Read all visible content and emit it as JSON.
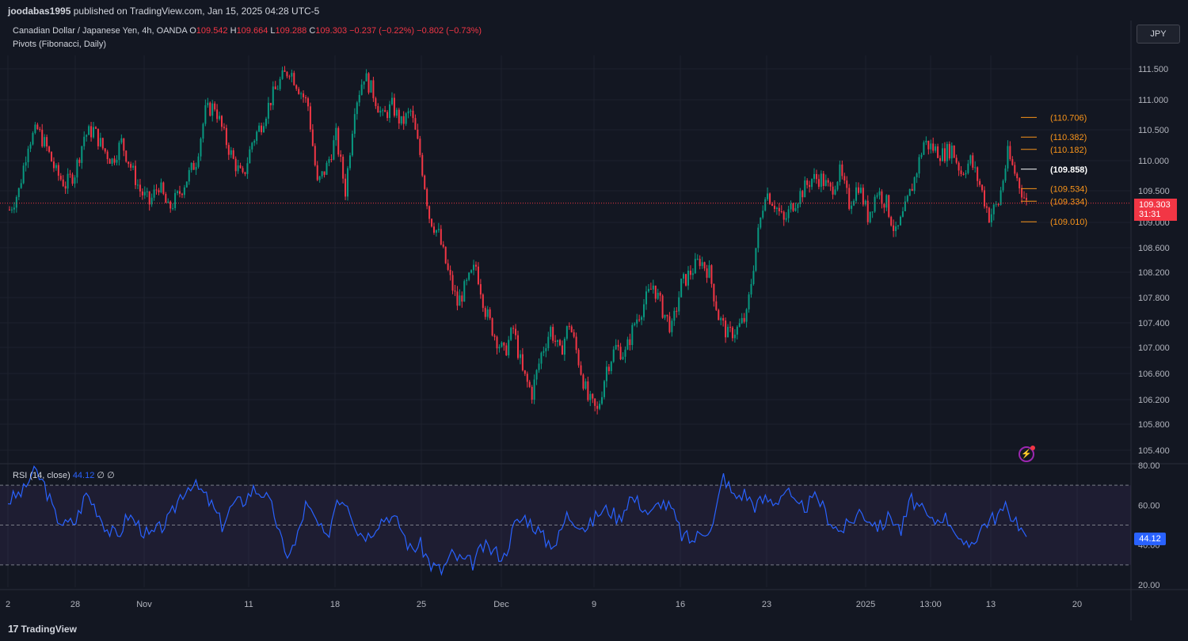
{
  "header": {
    "publisher": "joodabas1995",
    "published_text": "published on TradingView.com, Jan 15, 2025 04:28 UTC-5"
  },
  "legend": {
    "symbol": "Canadian Dollar / Japanese Yen, 4h, OANDA",
    "open_label": "O",
    "open": "109.542",
    "high_label": "H",
    "high": "109.664",
    "low_label": "L",
    "low": "109.288",
    "close_label": "C",
    "close": "109.303",
    "change": "−0.237 (−0.22%)",
    "change2": "−0.802 (−0.73%)",
    "indicator": "Pivots (Fibonacci, Daily)"
  },
  "rsi_legend": {
    "name": "RSI (14, close)",
    "value": "44.12",
    "extra1": "∅",
    "extra2": "∅"
  },
  "currency_button": "JPY",
  "price_tag": {
    "price": "109.303",
    "countdown": "31:31"
  },
  "rsi_tag": "44.12",
  "footer": {
    "brand": "TradingView",
    "brand_mark": "17"
  },
  "colors": {
    "up": "#089981",
    "down": "#f23645",
    "pivot": "#f7931a",
    "pivot_p": "#ffffff",
    "rsi": "#2962ff",
    "rsi_band": "#7e57c2",
    "bg": "#131722"
  },
  "icons": {
    "flash": "flash-icon"
  },
  "chart_data": {
    "type": "candlestick",
    "y_ticks": [
      "111.500",
      "111.000",
      "110.500",
      "110.000",
      "109.500",
      "109.000",
      "108.600",
      "108.200",
      "107.800",
      "107.400",
      "107.000",
      "106.600",
      "106.200",
      "105.800",
      "105.400"
    ],
    "x_ticks": [
      "2",
      "28",
      "Nov",
      "11",
      "18",
      "25",
      "Dec",
      "9",
      "16",
      "23",
      "2025",
      "13:00",
      "13",
      "20"
    ],
    "pivots": [
      {
        "label": "(110.706)",
        "value": 110.706,
        "kind": "R3"
      },
      {
        "label": "(110.382)",
        "value": 110.382,
        "kind": "R2"
      },
      {
        "label": "(110.182)",
        "value": 110.182,
        "kind": "R1"
      },
      {
        "label": "(109.858)",
        "value": 109.858,
        "kind": "P"
      },
      {
        "label": "(109.534)",
        "value": 109.534,
        "kind": "S1"
      },
      {
        "label": "(109.334)",
        "value": 109.334,
        "kind": "S2"
      },
      {
        "label": "(109.010)",
        "value": 109.01,
        "kind": "S3"
      }
    ],
    "last_price": 109.303,
    "close_path": [
      [
        0,
        109.2
      ],
      [
        2,
        109.5
      ],
      [
        4,
        110.3
      ],
      [
        6,
        110.5
      ],
      [
        8,
        110.2
      ],
      [
        10,
        109.8
      ],
      [
        12,
        109.6
      ],
      [
        14,
        109.8
      ],
      [
        16,
        110.4
      ],
      [
        18,
        110.5
      ],
      [
        20,
        110.2
      ],
      [
        22,
        110.0
      ],
      [
        24,
        110.3
      ],
      [
        26,
        109.9
      ],
      [
        28,
        109.5
      ],
      [
        30,
        109.3
      ],
      [
        32,
        109.6
      ],
      [
        34,
        109.2
      ],
      [
        36,
        109.4
      ],
      [
        38,
        109.7
      ],
      [
        40,
        110.0
      ],
      [
        42,
        110.8
      ],
      [
        44,
        110.9
      ],
      [
        46,
        110.4
      ],
      [
        48,
        110.0
      ],
      [
        50,
        109.7
      ],
      [
        52,
        110.3
      ],
      [
        54,
        110.6
      ],
      [
        56,
        111.0
      ],
      [
        58,
        111.3
      ],
      [
        60,
        111.5
      ],
      [
        62,
        111.2
      ],
      [
        64,
        110.9
      ],
      [
        66,
        109.6
      ],
      [
        68,
        109.9
      ],
      [
        70,
        110.4
      ],
      [
        72,
        109.5
      ],
      [
        74,
        110.9
      ],
      [
        76,
        111.4
      ],
      [
        78,
        111.1
      ],
      [
        80,
        110.7
      ],
      [
        82,
        110.9
      ],
      [
        84,
        110.6
      ],
      [
        86,
        110.8
      ],
      [
        88,
        110.1
      ],
      [
        90,
        109.1
      ],
      [
        92,
        108.8
      ],
      [
        94,
        108.2
      ],
      [
        96,
        107.7
      ],
      [
        98,
        108.0
      ],
      [
        100,
        108.3
      ],
      [
        102,
        107.6
      ],
      [
        104,
        107.2
      ],
      [
        106,
        106.9
      ],
      [
        108,
        107.3
      ],
      [
        110,
        106.6
      ],
      [
        112,
        106.3
      ],
      [
        114,
        106.9
      ],
      [
        116,
        107.3
      ],
      [
        118,
        106.9
      ],
      [
        120,
        107.4
      ],
      [
        122,
        106.8
      ],
      [
        124,
        106.2
      ],
      [
        126,
        106.0
      ],
      [
        128,
        106.7
      ],
      [
        130,
        107.0
      ],
      [
        132,
        106.9
      ],
      [
        134,
        107.4
      ],
      [
        136,
        107.7
      ],
      [
        138,
        108.0
      ],
      [
        140,
        107.6
      ],
      [
        142,
        107.3
      ],
      [
        144,
        108.0
      ],
      [
        146,
        108.2
      ],
      [
        148,
        108.4
      ],
      [
        150,
        108.2
      ],
      [
        152,
        107.5
      ],
      [
        154,
        107.2
      ],
      [
        156,
        107.3
      ],
      [
        158,
        107.5
      ],
      [
        160,
        108.6
      ],
      [
        162,
        109.5
      ],
      [
        164,
        109.3
      ],
      [
        166,
        109.0
      ],
      [
        168,
        109.3
      ],
      [
        170,
        109.5
      ],
      [
        172,
        109.7
      ],
      [
        174,
        109.7
      ],
      [
        176,
        109.5
      ],
      [
        178,
        109.8
      ],
      [
        180,
        109.3
      ],
      [
        182,
        109.6
      ],
      [
        184,
        109.1
      ],
      [
        186,
        109.5
      ],
      [
        188,
        109.3
      ],
      [
        190,
        108.8
      ],
      [
        192,
        109.2
      ],
      [
        194,
        109.7
      ],
      [
        196,
        110.3
      ],
      [
        198,
        110.2
      ],
      [
        200,
        110.1
      ],
      [
        202,
        110.2
      ],
      [
        204,
        109.8
      ],
      [
        206,
        110.0
      ],
      [
        208,
        109.6
      ],
      [
        210,
        109.1
      ],
      [
        212,
        109.3
      ],
      [
        214,
        110.1
      ],
      [
        216,
        109.7
      ],
      [
        218,
        109.3
      ]
    ],
    "rsi": {
      "y_ticks": [
        "80.00",
        "60.00",
        "40.00",
        "20.00"
      ],
      "levels": [
        70,
        50,
        30
      ],
      "path": [
        [
          0,
          62
        ],
        [
          3,
          67
        ],
        [
          5,
          78
        ],
        [
          7,
          70
        ],
        [
          9,
          55
        ],
        [
          11,
          50
        ],
        [
          13,
          52
        ],
        [
          15,
          66
        ],
        [
          17,
          58
        ],
        [
          19,
          48
        ],
        [
          21,
          44
        ],
        [
          23,
          55
        ],
        [
          25,
          50
        ],
        [
          27,
          44
        ],
        [
          29,
          48
        ],
        [
          31,
          53
        ],
        [
          33,
          65
        ],
        [
          35,
          71
        ],
        [
          37,
          67
        ],
        [
          39,
          60
        ],
        [
          41,
          50
        ],
        [
          43,
          60
        ],
        [
          45,
          62
        ],
        [
          47,
          68
        ],
        [
          49,
          66
        ],
        [
          51,
          56
        ],
        [
          53,
          35
        ],
        [
          55,
          40
        ],
        [
          57,
          60
        ],
        [
          59,
          52
        ],
        [
          61,
          42
        ],
        [
          63,
          64
        ],
        [
          65,
          62
        ],
        [
          67,
          47
        ],
        [
          69,
          45
        ],
        [
          71,
          52
        ],
        [
          73,
          55
        ],
        [
          75,
          50
        ],
        [
          77,
          38
        ],
        [
          79,
          40
        ],
        [
          81,
          30
        ],
        [
          83,
          27
        ],
        [
          85,
          35
        ],
        [
          87,
          32
        ],
        [
          89,
          31
        ],
        [
          91,
          39
        ],
        [
          93,
          37
        ],
        [
          95,
          34
        ],
        [
          97,
          50
        ],
        [
          99,
          54
        ],
        [
          101,
          49
        ],
        [
          103,
          42
        ],
        [
          105,
          41
        ],
        [
          107,
          55
        ],
        [
          109,
          52
        ],
        [
          111,
          48
        ],
        [
          113,
          56
        ],
        [
          115,
          58
        ],
        [
          117,
          53
        ],
        [
          119,
          64
        ],
        [
          121,
          61
        ],
        [
          123,
          55
        ],
        [
          125,
          62
        ],
        [
          127,
          58
        ],
        [
          129,
          45
        ],
        [
          131,
          42
        ],
        [
          133,
          47
        ],
        [
          135,
          50
        ],
        [
          137,
          75
        ],
        [
          139,
          64
        ],
        [
          141,
          66
        ],
        [
          143,
          60
        ],
        [
          145,
          63
        ],
        [
          147,
          62
        ],
        [
          149,
          68
        ],
        [
          151,
          58
        ],
        [
          153,
          60
        ],
        [
          155,
          64
        ],
        [
          157,
          54
        ],
        [
          159,
          47
        ],
        [
          161,
          50
        ],
        [
          163,
          57
        ],
        [
          165,
          53
        ],
        [
          167,
          49
        ],
        [
          169,
          55
        ],
        [
          171,
          47
        ],
        [
          173,
          63
        ],
        [
          175,
          57
        ],
        [
          177,
          51
        ],
        [
          179,
          55
        ],
        [
          181,
          50
        ],
        [
          183,
          37
        ],
        [
          185,
          43
        ],
        [
          187,
          51
        ],
        [
          189,
          54
        ],
        [
          191,
          58
        ],
        [
          193,
          53
        ],
        [
          195,
          44.12
        ]
      ]
    }
  }
}
